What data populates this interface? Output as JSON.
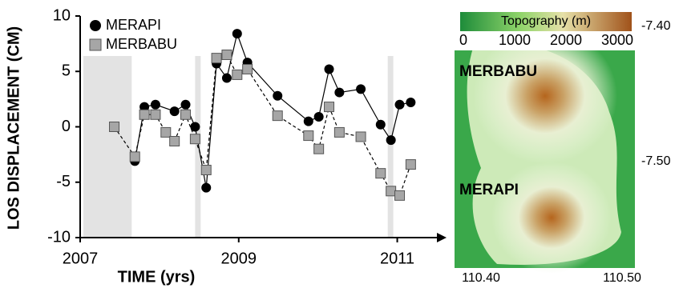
{
  "chart_data": {
    "type": "line",
    "xlabel": "TIME (yrs)",
    "ylabel": "LOS DISPLACEMENT (CM)",
    "xlim": [
      2007,
      2011.5
    ],
    "ylim": [
      -10,
      10
    ],
    "xticks": [
      2007,
      2009,
      2011
    ],
    "yticks": [
      -10,
      -5,
      0,
      5,
      10
    ],
    "shaded_periods": [
      [
        2007.04,
        2007.65
      ],
      [
        2008.45,
        2008.52
      ],
      [
        2010.88,
        2010.95
      ]
    ],
    "series": [
      {
        "name": "MERAPI",
        "color": "#000000",
        "marker": "circle",
        "dashed": false,
        "x": [
          2007.69,
          2007.81,
          2007.95,
          2008.19,
          2008.33,
          2008.45,
          2008.59,
          2008.72,
          2008.85,
          2008.98,
          2009.11,
          2009.49,
          2009.88,
          2010.01,
          2010.14,
          2010.27,
          2010.54,
          2010.79,
          2010.92,
          2011.03,
          2011.17
        ],
        "values": [
          -3.1,
          1.8,
          2.0,
          1.4,
          2.0,
          0.0,
          -5.5,
          5.7,
          4.4,
          8.4,
          5.8,
          2.8,
          0.5,
          0.9,
          5.2,
          3.1,
          3.4,
          0.2,
          -1.2,
          2.0,
          2.2
        ]
      },
      {
        "name": "MERBABU",
        "color": "#a6a6a6",
        "marker": "square",
        "dashed": true,
        "x": [
          2007.43,
          2007.69,
          2007.81,
          2007.95,
          2008.08,
          2008.19,
          2008.33,
          2008.45,
          2008.59,
          2008.72,
          2008.85,
          2008.98,
          2009.11,
          2009.49,
          2009.88,
          2010.01,
          2010.14,
          2010.27,
          2010.54,
          2010.79,
          2010.92,
          2011.03,
          2011.17
        ],
        "values": [
          0.0,
          -2.7,
          1.1,
          1.1,
          -0.5,
          -1.3,
          1.1,
          -1.1,
          -3.9,
          6.2,
          6.5,
          4.7,
          5.2,
          1.0,
          -0.8,
          -2.0,
          1.8,
          -0.5,
          -0.9,
          -4.2,
          -5.8,
          -6.2,
          -3.4
        ]
      }
    ]
  },
  "map": {
    "colorbar_title": "Topography (m)",
    "colorbar_ticks": [
      0,
      1000,
      2000,
      3000
    ],
    "lat_labels": [
      "-7.40",
      "-7.50"
    ],
    "lon_labels": [
      "110.40",
      "110.50"
    ],
    "volcano_labels": [
      "MERBABU",
      "MERAPI"
    ]
  }
}
